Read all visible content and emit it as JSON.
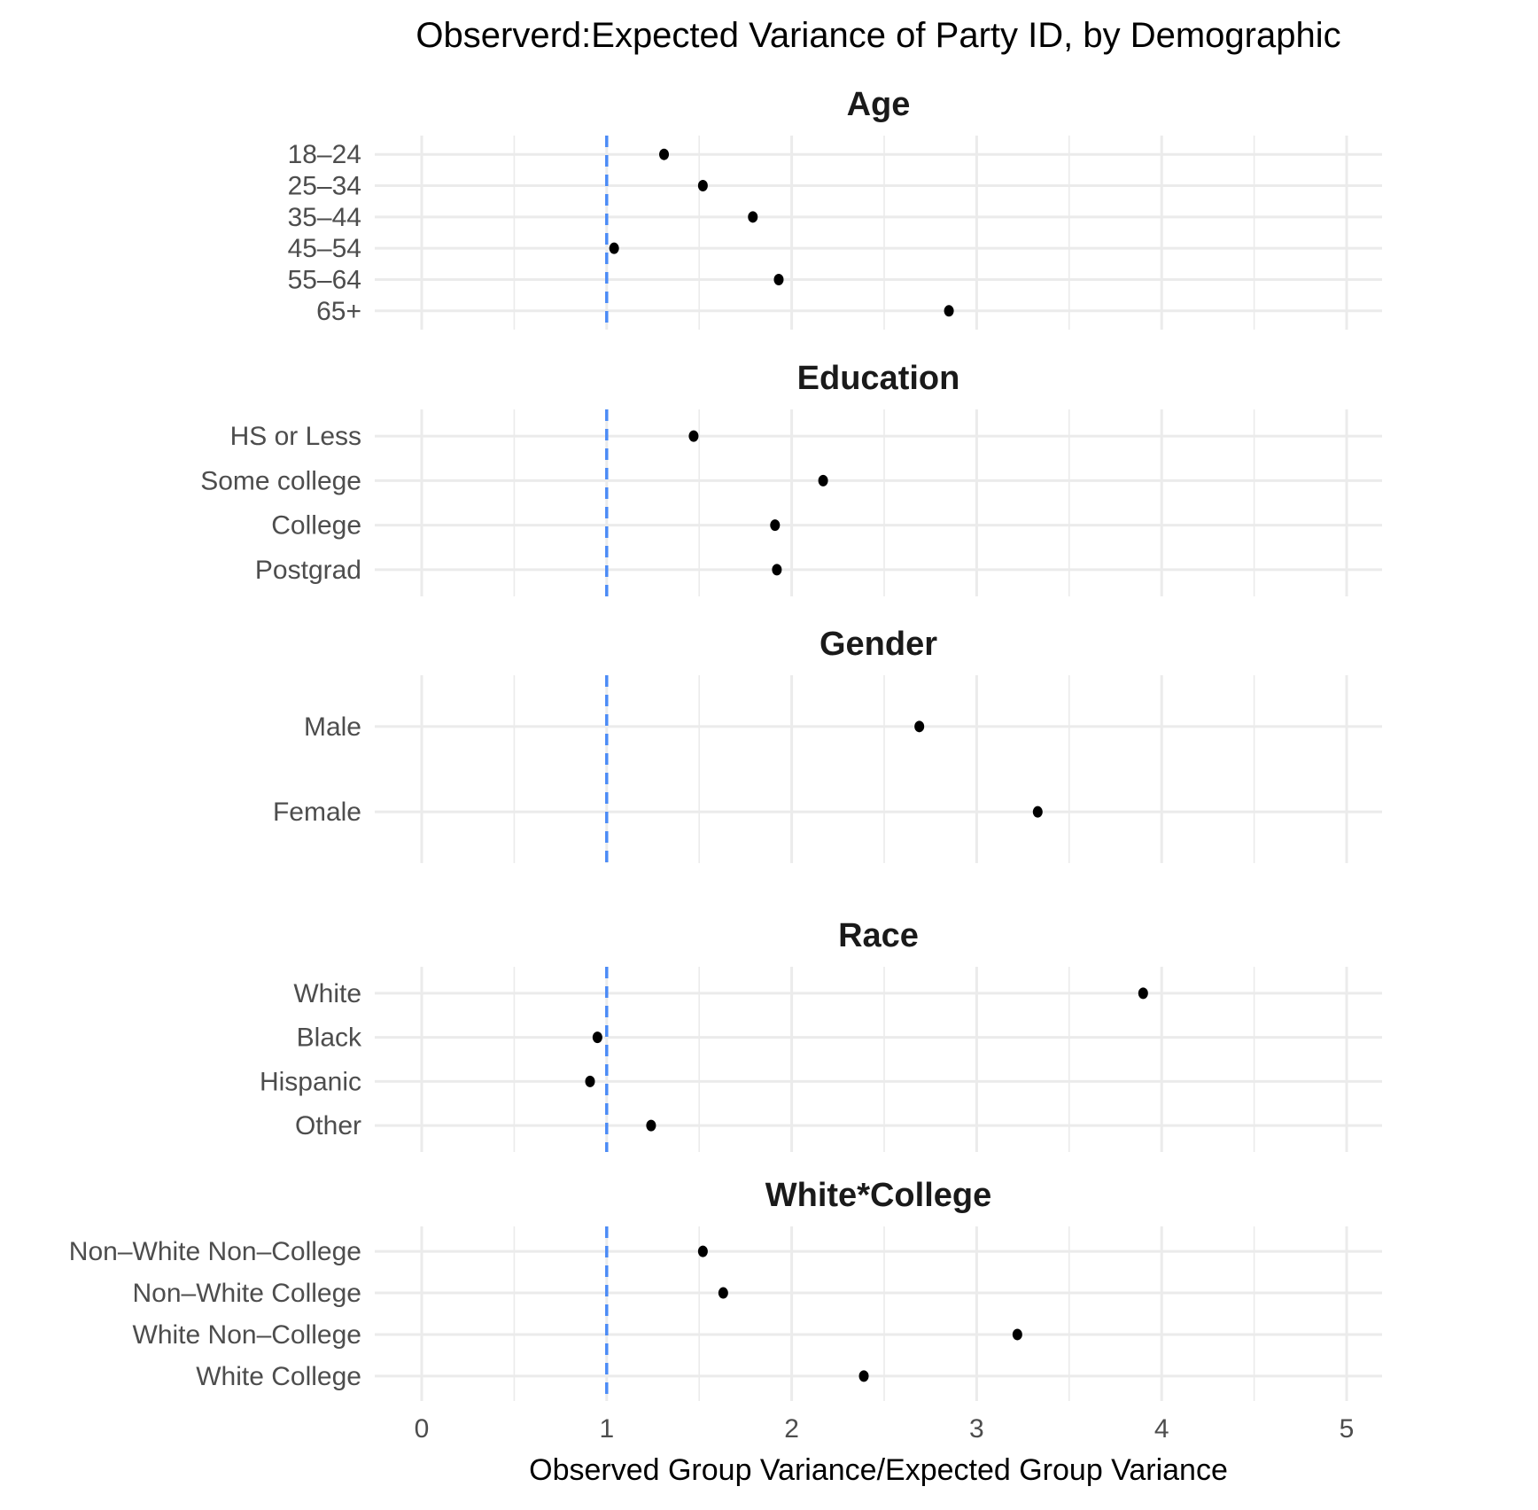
{
  "chart_data": {
    "type": "scatter",
    "title": "Observerd:Expected Variance of Party ID, by Demographic",
    "xlabel": "Observed Group Variance/Expected Group Variance",
    "x_ticks": [
      "0",
      "1",
      "2",
      "3",
      "4",
      "5"
    ],
    "xlim": [
      -0.25,
      5.2
    ],
    "grid": "major and minor vertical gridlines, major horizontal row gridlines",
    "legend": "none",
    "reference_line": {
      "x": 1,
      "style": "dashed",
      "color": "#4C8BF5"
    },
    "colors": {
      "point": "#000000",
      "gridline": "#EBEBEB",
      "axis_text": "#4D4D4D",
      "strip_text": "#1A1A1A",
      "title_text": "#000000",
      "background": "#FFFFFF"
    },
    "facets": [
      {
        "title": "Age",
        "categories": [
          "18–24",
          "25–34",
          "35–44",
          "45–54",
          "55–64",
          "65+"
        ],
        "values": [
          1.31,
          1.52,
          1.79,
          1.04,
          1.93,
          2.85
        ]
      },
      {
        "title": "Education",
        "categories": [
          "HS or Less",
          "Some college",
          "College",
          "Postgrad"
        ],
        "values": [
          1.47,
          2.17,
          1.91,
          1.92
        ]
      },
      {
        "title": "Gender",
        "categories": [
          "Male",
          "Female"
        ],
        "values": [
          2.69,
          3.33
        ]
      },
      {
        "title": "Race",
        "categories": [
          "White",
          "Black",
          "Hispanic",
          "Other"
        ],
        "values": [
          3.9,
          0.95,
          0.91,
          1.24
        ]
      },
      {
        "title": "White*College",
        "categories": [
          "Non–White Non–College",
          "Non–White College",
          "White Non–College",
          "White College"
        ],
        "values": [
          1.52,
          1.63,
          3.22,
          2.39
        ]
      }
    ]
  }
}
